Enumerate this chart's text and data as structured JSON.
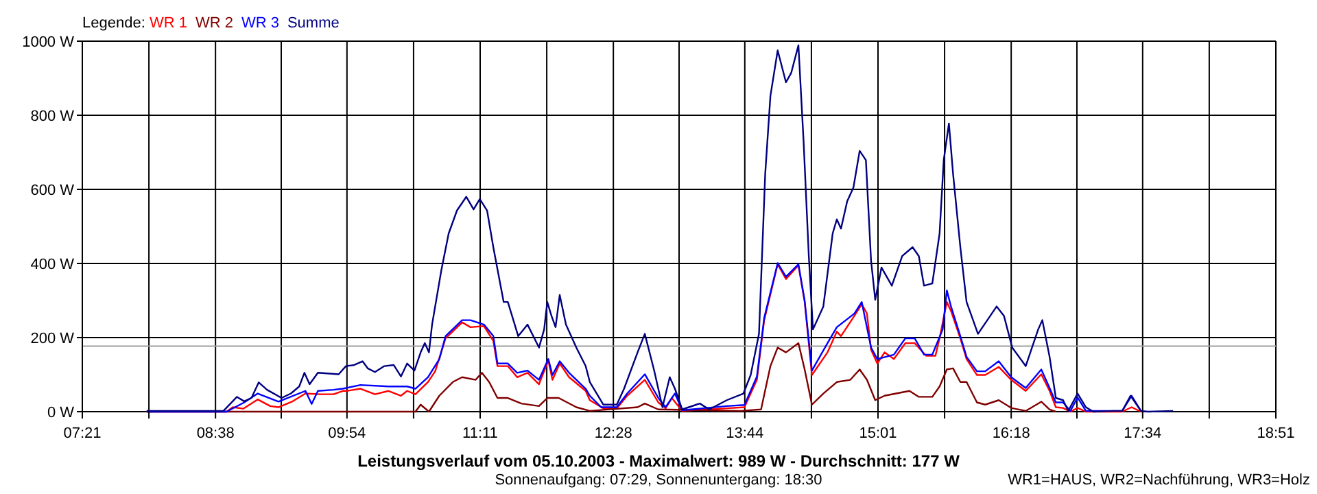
{
  "chart_data": {
    "type": "line",
    "title": "Leistungsverlauf vom 05.10.2003 - Maximalwert: 989 W - Durchschnitt: 177 W",
    "subtitle": "Sonnenaufgang: 07:29, Sonnenuntergang: 18:30",
    "legend_title": "Legende:",
    "annotations": [
      "WR1=HAUS, WR2=Nachführung, WR3=Holz"
    ],
    "legend": "top left",
    "grid": true,
    "line_style": "solid",
    "xlim": [
      7.35,
      18.85
    ],
    "ylim": [
      0,
      1000
    ],
    "xticks": [
      {
        "value": 7.35,
        "label": "07:21"
      },
      {
        "value": 7.9917,
        "label": null
      },
      {
        "value": 8.6333,
        "label": "08:38"
      },
      {
        "value": 9.2667,
        "label": null
      },
      {
        "value": 9.9,
        "label": "09:54"
      },
      {
        "value": 10.5417,
        "label": null
      },
      {
        "value": 11.1833,
        "label": "11:11"
      },
      {
        "value": 11.825,
        "label": null
      },
      {
        "value": 12.4667,
        "label": "12:28"
      },
      {
        "value": 13.1,
        "label": null
      },
      {
        "value": 13.7333,
        "label": "13:44"
      },
      {
        "value": 14.375,
        "label": null
      },
      {
        "value": 15.0167,
        "label": "15:01"
      },
      {
        "value": 15.6583,
        "label": null
      },
      {
        "value": 16.3,
        "label": "16:18"
      },
      {
        "value": 16.9333,
        "label": null
      },
      {
        "value": 17.5667,
        "label": "17:34"
      },
      {
        "value": 18.2083,
        "label": null
      },
      {
        "value": 18.85,
        "label": "18:51"
      }
    ],
    "yticks": [
      {
        "value": 0,
        "label": "0 W"
      },
      {
        "value": 200,
        "label": "200 W"
      },
      {
        "value": 400,
        "label": "400 W"
      },
      {
        "value": 600,
        "label": "600 W"
      },
      {
        "value": 800,
        "label": "800 W"
      },
      {
        "value": 1000,
        "label": "1000 W"
      }
    ],
    "ref_lines": [
      {
        "axis": "y",
        "value": 177,
        "color": "#a0a0a0"
      }
    ],
    "series": [
      {
        "name": "WR 1",
        "color": "#ff0000",
        "x": [
          7.97,
          8.74,
          8.8,
          8.9,
          9.04,
          9.16,
          9.24,
          9.37,
          9.5,
          9.64,
          9.77,
          9.86,
          9.9,
          10.03,
          10.17,
          10.3,
          10.42,
          10.48,
          10.56,
          10.68,
          10.75,
          10.85,
          11.01,
          11.09,
          11.22,
          11.31,
          11.35,
          11.45,
          11.54,
          11.64,
          11.75,
          11.84,
          11.88,
          11.95,
          12.04,
          12.2,
          12.24,
          12.37,
          12.5,
          12.6,
          12.77,
          12.9,
          12.97,
          13.03,
          13.13,
          13.56,
          13.73,
          13.85,
          13.92,
          14.05,
          14.13,
          14.25,
          14.31,
          14.38,
          14.53,
          14.62,
          14.66,
          14.79,
          14.86,
          14.91,
          14.95,
          15.01,
          15.08,
          15.17,
          15.28,
          15.37,
          15.48,
          15.57,
          15.61,
          15.68,
          15.72,
          15.81,
          15.87,
          15.97,
          16.05,
          16.18,
          16.3,
          16.44,
          16.59,
          16.67,
          16.73,
          16.8,
          16.87,
          16.94,
          17.02,
          17.37,
          17.46,
          17.55
        ],
        "values": [
          0,
          0,
          12,
          8,
          33,
          15,
          12,
          27,
          49,
          47,
          47,
          56,
          56,
          62,
          47,
          56,
          43,
          56,
          47,
          80,
          109,
          198,
          241,
          228,
          231,
          191,
          123,
          123,
          93,
          105,
          74,
          138,
          86,
          130,
          93,
          56,
          31,
          9,
          9,
          43,
          86,
          25,
          9,
          37,
          2,
          9,
          12,
          86,
          247,
          398,
          358,
          395,
          296,
          99,
          160,
          216,
          204,
          259,
          290,
          265,
          167,
          130,
          160,
          142,
          185,
          185,
          151,
          151,
          198,
          296,
          272,
          198,
          142,
          99,
          99,
          121,
          86,
          56,
          101,
          56,
          12,
          10,
          0,
          10,
          0,
          0,
          12,
          0
        ]
      },
      {
        "name": "WR 2",
        "color": "#800000",
        "x": [
          7.97,
          10.56,
          10.61,
          10.69,
          10.79,
          10.92,
          11.01,
          11.14,
          11.2,
          11.27,
          11.35,
          11.45,
          11.58,
          11.75,
          11.83,
          11.94,
          12.11,
          12.24,
          12.7,
          12.77,
          12.9,
          13.69,
          13.89,
          13.98,
          14.05,
          14.13,
          14.25,
          14.31,
          14.38,
          14.49,
          14.62,
          14.75,
          14.84,
          14.91,
          14.99,
          15.08,
          15.32,
          15.41,
          15.54,
          15.61,
          15.68,
          15.74,
          15.81,
          15.87,
          15.97,
          16.05,
          16.18,
          16.3,
          16.44,
          16.59,
          16.67,
          16.73
        ],
        "values": [
          0,
          0,
          19,
          0,
          43,
          80,
          93,
          86,
          105,
          80,
          37,
          37,
          22,
          15,
          37,
          37,
          12,
          2,
          12,
          22,
          6,
          2,
          6,
          123,
          173,
          160,
          185,
          114,
          19,
          49,
          80,
          86,
          114,
          86,
          31,
          43,
          56,
          40,
          40,
          68,
          114,
          117,
          80,
          80,
          25,
          19,
          31,
          10,
          2,
          27,
          6,
          0
        ]
      },
      {
        "name": "WR 3",
        "color": "#0000ff",
        "x": [
          7.97,
          8.74,
          8.91,
          9.04,
          9.24,
          9.5,
          9.56,
          9.62,
          9.77,
          9.86,
          10.03,
          10.3,
          10.48,
          10.56,
          10.68,
          10.79,
          10.85,
          11.01,
          11.09,
          11.22,
          11.31,
          11.35,
          11.45,
          11.54,
          11.64,
          11.75,
          11.84,
          11.88,
          11.95,
          12.04,
          12.2,
          12.24,
          12.35,
          12.5,
          12.6,
          12.77,
          12.9,
          12.97,
          13.06,
          13.13,
          13.56,
          13.73,
          13.85,
          13.92,
          14.05,
          14.13,
          14.25,
          14.31,
          14.38,
          14.53,
          14.62,
          14.79,
          14.86,
          14.95,
          15.01,
          15.17,
          15.28,
          15.37,
          15.46,
          15.54,
          15.64,
          15.68,
          15.72,
          15.81,
          15.87,
          15.97,
          16.05,
          16.18,
          16.3,
          16.44,
          16.59,
          16.67,
          16.73,
          16.8,
          16.87,
          16.94,
          17.02,
          17.37,
          17.46,
          17.55
        ],
        "values": [
          0,
          0,
          25,
          49,
          27,
          56,
          21,
          56,
          59,
          62,
          72,
          68,
          68,
          62,
          93,
          142,
          204,
          247,
          247,
          235,
          204,
          130,
          130,
          105,
          111,
          86,
          142,
          99,
          136,
          105,
          62,
          43,
          12,
          12,
          49,
          101,
          37,
          12,
          49,
          4,
          15,
          18,
          95,
          253,
          401,
          364,
          398,
          300,
          111,
          185,
          228,
          265,
          296,
          173,
          142,
          154,
          198,
          198,
          154,
          154,
          222,
          327,
          284,
          204,
          148,
          109,
          109,
          136,
          93,
          64,
          114,
          64,
          25,
          25,
          2,
          38,
          2,
          2,
          43,
          2
        ]
      },
      {
        "name": "Summe",
        "color": "#000080",
        "x": [
          7.97,
          8.54,
          8.71,
          8.84,
          8.91,
          8.98,
          9.05,
          9.13,
          9.27,
          9.36,
          9.44,
          9.49,
          9.54,
          9.62,
          9.82,
          9.89,
          9.97,
          10.05,
          10.1,
          10.17,
          10.26,
          10.35,
          10.42,
          10.48,
          10.55,
          10.61,
          10.65,
          10.69,
          10.72,
          10.81,
          10.88,
          10.96,
          11.05,
          11.12,
          11.18,
          11.25,
          11.31,
          11.41,
          11.45,
          11.51,
          11.55,
          11.64,
          11.75,
          11.8,
          11.83,
          11.87,
          11.91,
          11.95,
          12.01,
          12.11,
          12.2,
          12.24,
          12.37,
          12.5,
          12.57,
          12.7,
          12.77,
          12.86,
          12.94,
          13.01,
          13.06,
          13.13,
          13.3,
          13.39,
          13.56,
          13.72,
          13.79,
          13.87,
          13.93,
          13.98,
          14.05,
          14.13,
          14.18,
          14.25,
          14.3,
          14.35,
          14.39,
          14.49,
          14.58,
          14.62,
          14.66,
          14.72,
          14.78,
          14.84,
          14.9,
          14.95,
          14.99,
          15.05,
          15.15,
          15.25,
          15.35,
          15.41,
          15.46,
          15.54,
          15.61,
          15.65,
          15.7,
          15.74,
          15.81,
          15.87,
          15.98,
          16.07,
          16.16,
          16.23,
          16.31,
          16.44,
          16.56,
          16.6,
          16.67,
          16.73,
          16.8,
          16.85,
          16.94,
          17.02,
          17.09,
          17.29,
          17.37,
          17.45,
          17.55,
          17.62,
          17.86
        ],
        "values": [
          2,
          2,
          2,
          40,
          28,
          37,
          79,
          59,
          37,
          49,
          68,
          105,
          74,
          105,
          101,
          123,
          126,
          136,
          117,
          107,
          123,
          126,
          95,
          130,
          111,
          160,
          185,
          160,
          235,
          383,
          481,
          543,
          580,
          546,
          574,
          543,
          444,
          296,
          296,
          241,
          204,
          235,
          173,
          222,
          296,
          259,
          228,
          315,
          235,
          173,
          123,
          80,
          19,
          19,
          62,
          160,
          210,
          111,
          12,
          93,
          62,
          6,
          22,
          6,
          31,
          49,
          99,
          210,
          642,
          852,
          975,
          889,
          914,
          989,
          728,
          420,
          222,
          284,
          481,
          519,
          494,
          568,
          605,
          704,
          679,
          407,
          302,
          389,
          340,
          420,
          444,
          420,
          340,
          346,
          481,
          679,
          778,
          642,
          444,
          296,
          210,
          247,
          284,
          259,
          173,
          123,
          222,
          247,
          148,
          37,
          31,
          2,
          49,
          12,
          0,
          2,
          2,
          43,
          2,
          0,
          2
        ]
      }
    ]
  }
}
